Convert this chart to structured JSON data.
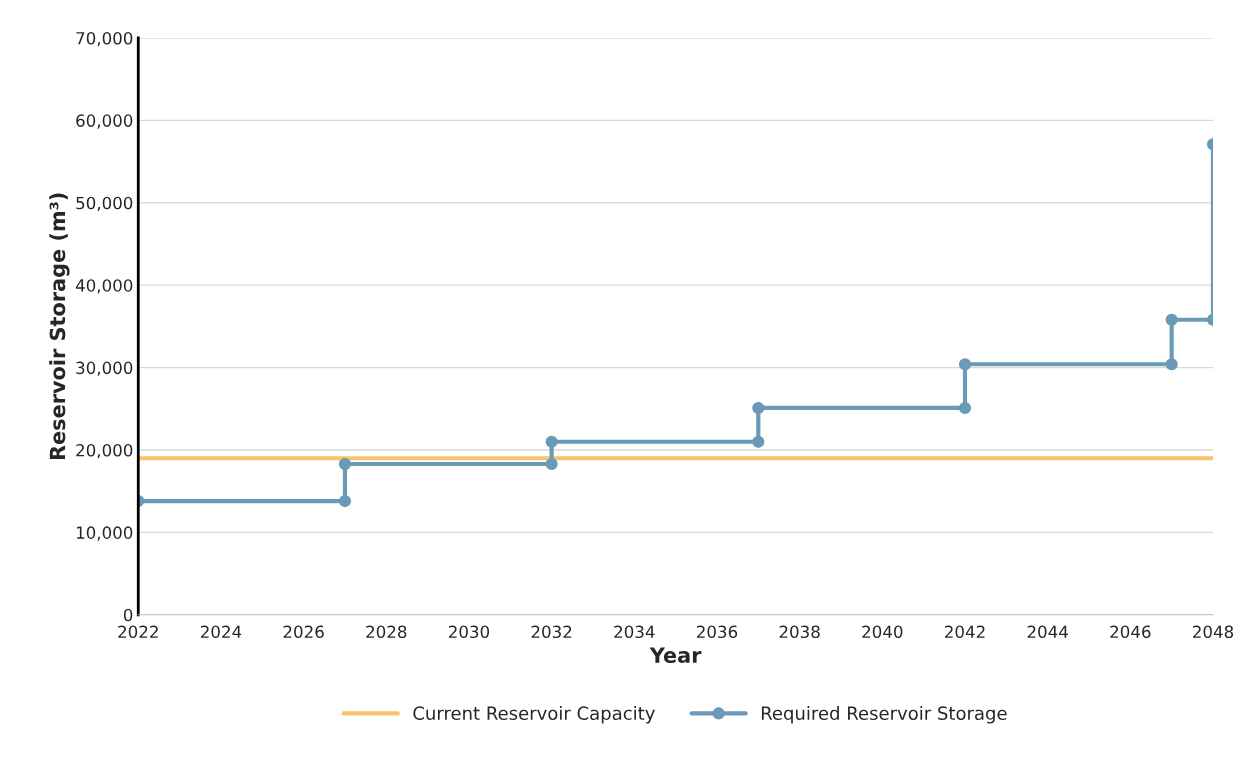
{
  "chart_data": {
    "type": "line",
    "xlabel": "Year",
    "ylabel": "Reservoir Storage (m³)",
    "xlim": [
      2022,
      2048
    ],
    "xticks": [
      2022,
      2024,
      2026,
      2028,
      2030,
      2032,
      2034,
      2036,
      2038,
      2040,
      2042,
      2044,
      2046,
      2048
    ],
    "ylim": [
      0,
      70000
    ],
    "yticks": [
      {
        "value": 0,
        "label": "0"
      },
      {
        "value": 10000,
        "label": "10,000"
      },
      {
        "value": 20000,
        "label": "20,000"
      },
      {
        "value": 30000,
        "label": "30,000"
      },
      {
        "value": 40000,
        "label": "40,000"
      },
      {
        "value": 50000,
        "label": "50,000"
      },
      {
        "value": 60000,
        "label": "60,000"
      },
      {
        "value": 70000,
        "label": "70,000"
      }
    ],
    "grid": "y",
    "legend": "bottom",
    "line_style": "solid",
    "series": [
      {
        "name": "Current Reservoir Capacity",
        "color": "#f9c36a",
        "marker": "none",
        "x": [
          2022,
          2048
        ],
        "values": [
          19000,
          19000
        ]
      },
      {
        "name": "Required Reservoir Storage",
        "color": "#6a9ab8",
        "marker": "circle",
        "x": [
          2022,
          2027,
          2027,
          2032,
          2032,
          2037,
          2037,
          2042,
          2042,
          2047,
          2047,
          2048,
          2048
        ],
        "values": [
          13800,
          13800,
          18300,
          18300,
          21000,
          21000,
          25100,
          25100,
          30400,
          30400,
          35800,
          35800,
          57100
        ]
      }
    ]
  }
}
